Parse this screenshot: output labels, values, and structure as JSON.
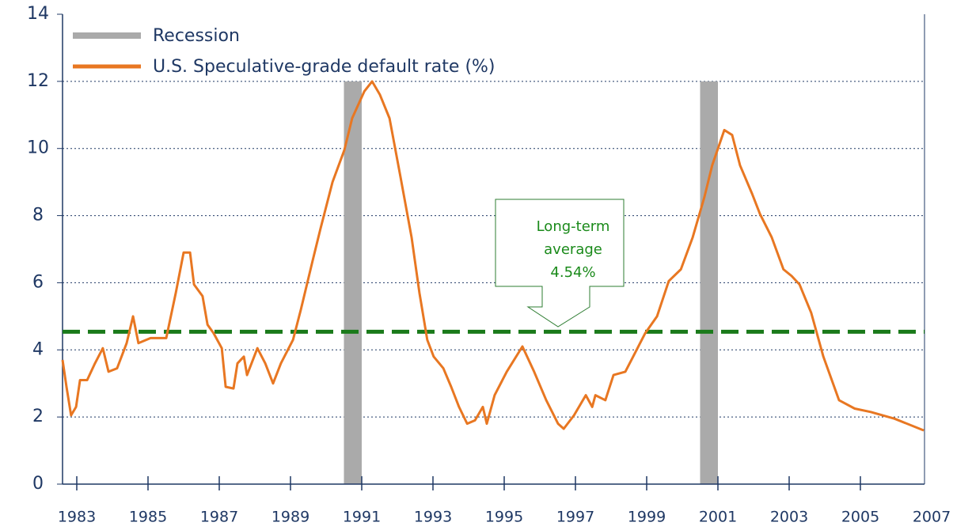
{
  "chart_data": {
    "type": "line",
    "xlim": [
      1982.6,
      2006.8
    ],
    "xticks": [
      1983,
      1985,
      1987,
      1989,
      1991,
      1993,
      1995,
      1997,
      1999,
      2001,
      2003,
      2005,
      2007
    ],
    "ylim": [
      0,
      14
    ],
    "yticks": [
      0,
      2,
      4,
      6,
      8,
      10,
      12,
      14
    ],
    "grid": true,
    "recession": {
      "name": "Recession",
      "color": "#aaaaaa",
      "top": 12,
      "ranges": [
        [
          1990.5,
          1991.0
        ],
        [
          2000.5,
          2001.0
        ]
      ]
    },
    "series": [
      {
        "name": "U.S. Speculative-grade default rate (%)",
        "color": "#e87722",
        "x": [
          1982.6,
          1982.71,
          1982.84,
          1982.98,
          1983.09,
          1983.29,
          1983.51,
          1983.73,
          1983.89,
          1984.13,
          1984.4,
          1984.58,
          1984.73,
          1985.07,
          1985.51,
          1985.78,
          1986.0,
          1986.18,
          1986.29,
          1986.53,
          1986.67,
          1986.84,
          1987.07,
          1987.18,
          1987.4,
          1987.51,
          1987.69,
          1987.78,
          1988.07,
          1988.29,
          1988.51,
          1988.73,
          1989.07,
          1989.29,
          1989.62,
          1989.84,
          1990.18,
          1990.51,
          1990.73,
          1991.07,
          1991.29,
          1991.51,
          1991.78,
          1992.07,
          1992.4,
          1992.62,
          1992.84,
          1993.02,
          1993.29,
          1993.51,
          1993.73,
          1993.96,
          1994.18,
          1994.4,
          1994.51,
          1994.73,
          1995.07,
          1995.51,
          1995.84,
          1996.18,
          1996.51,
          1996.67,
          1996.96,
          1997.29,
          1997.47,
          1997.56,
          1997.84,
          1998.07,
          1998.4,
          1998.62,
          1998.96,
          1999.29,
          1999.62,
          1999.96,
          2000.29,
          2000.62,
          2000.84,
          2001.18,
          2001.4,
          2001.62,
          2001.96,
          2002.18,
          2002.51,
          2002.84,
          2003.07,
          2003.29,
          2003.62,
          2003.96,
          2004.4,
          2004.84,
          2005.29,
          2005.96,
          2006.78
        ],
        "values": [
          3.7,
          2.9,
          2.05,
          2.3,
          3.1,
          3.1,
          3.6,
          4.05,
          3.35,
          3.45,
          4.2,
          5.0,
          4.2,
          4.35,
          4.35,
          5.7,
          6.9,
          6.9,
          5.95,
          5.6,
          4.75,
          4.5,
          4.05,
          2.9,
          2.85,
          3.6,
          3.8,
          3.25,
          4.05,
          3.6,
          3.0,
          3.6,
          4.3,
          5.2,
          6.65,
          7.6,
          9.0,
          9.95,
          10.9,
          11.7,
          12.0,
          11.6,
          10.9,
          9.25,
          7.35,
          5.7,
          4.3,
          3.8,
          3.45,
          2.9,
          2.3,
          1.8,
          1.9,
          2.3,
          1.8,
          2.65,
          3.35,
          4.1,
          3.35,
          2.5,
          1.8,
          1.65,
          2.05,
          2.65,
          2.3,
          2.65,
          2.5,
          3.25,
          3.35,
          3.8,
          4.5,
          5.0,
          6.05,
          6.4,
          7.35,
          8.55,
          9.5,
          10.55,
          10.4,
          9.5,
          8.65,
          8.05,
          7.35,
          6.4,
          6.2,
          5.95,
          5.1,
          3.8,
          2.5,
          2.25,
          2.15,
          1.95,
          1.6
        ]
      }
    ],
    "average": {
      "value": 4.54,
      "color": "#1a7a1a",
      "annotation": [
        "Long-term",
        "average",
        "4.54%"
      ]
    }
  }
}
